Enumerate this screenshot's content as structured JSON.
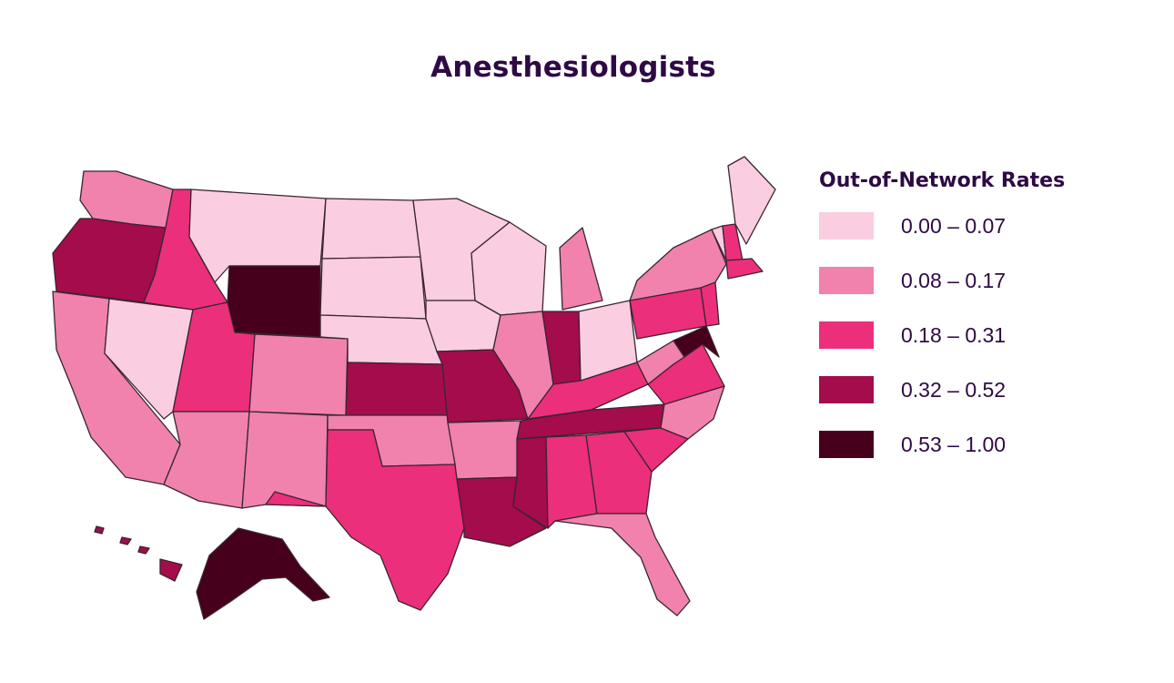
{
  "title": "Anesthesiologists",
  "legend": {
    "title": "Out-of-Network Rates",
    "bins": [
      {
        "label": "0.00 – 0.07",
        "color": "#fbcde0",
        "min": 0.0,
        "max": 0.07
      },
      {
        "label": "0.08 – 0.17",
        "color": "#f082ad",
        "min": 0.08,
        "max": 0.17
      },
      {
        "label": "0.18 – 0.31",
        "color": "#ec2f7a",
        "min": 0.18,
        "max": 0.31
      },
      {
        "label": "0.32 – 0.52",
        "color": "#a40c4b",
        "min": 0.32,
        "max": 0.52
      },
      {
        "label": "0.53 – 1.00",
        "color": "#47001c",
        "min": 0.53,
        "max": 1.0
      }
    ]
  },
  "map": {
    "regions": [
      {
        "name": "Washington",
        "bin": 1
      },
      {
        "name": "Oregon",
        "bin": 3
      },
      {
        "name": "California",
        "bin": 1
      },
      {
        "name": "Nevada",
        "bin": 0
      },
      {
        "name": "Idaho",
        "bin": 2
      },
      {
        "name": "Montana",
        "bin": 0
      },
      {
        "name": "Wyoming",
        "bin": 4
      },
      {
        "name": "Utah",
        "bin": 2
      },
      {
        "name": "Arizona",
        "bin": 1
      },
      {
        "name": "Colorado",
        "bin": 1
      },
      {
        "name": "New Mexico",
        "bin": 1
      },
      {
        "name": "North Dakota",
        "bin": 0
      },
      {
        "name": "South Dakota",
        "bin": 0
      },
      {
        "name": "Nebraska",
        "bin": 0
      },
      {
        "name": "Kansas",
        "bin": 3
      },
      {
        "name": "Oklahoma",
        "bin": 1
      },
      {
        "name": "Texas",
        "bin": 2
      },
      {
        "name": "Minnesota",
        "bin": 0
      },
      {
        "name": "Iowa",
        "bin": 0
      },
      {
        "name": "Missouri",
        "bin": 3
      },
      {
        "name": "Arkansas",
        "bin": 1
      },
      {
        "name": "Louisiana",
        "bin": 3
      },
      {
        "name": "Wisconsin",
        "bin": 0
      },
      {
        "name": "Illinois",
        "bin": 1
      },
      {
        "name": "Michigan",
        "bin": 1
      },
      {
        "name": "Indiana",
        "bin": 3
      },
      {
        "name": "Ohio",
        "bin": 0
      },
      {
        "name": "Kentucky",
        "bin": 2
      },
      {
        "name": "Tennessee",
        "bin": 3
      },
      {
        "name": "Mississippi",
        "bin": 3
      },
      {
        "name": "Alabama",
        "bin": 2
      },
      {
        "name": "Georgia",
        "bin": 2
      },
      {
        "name": "Florida",
        "bin": 1
      },
      {
        "name": "South Carolina",
        "bin": 2
      },
      {
        "name": "North Carolina",
        "bin": 1
      },
      {
        "name": "Virginia",
        "bin": 2
      },
      {
        "name": "West Virginia",
        "bin": 1
      },
      {
        "name": "Pennsylvania",
        "bin": 2
      },
      {
        "name": "New York",
        "bin": 1
      },
      {
        "name": "Vermont",
        "bin": 0
      },
      {
        "name": "New Hampshire",
        "bin": 2
      },
      {
        "name": "Maine",
        "bin": 0
      },
      {
        "name": "Massachusetts",
        "bin": 2
      },
      {
        "name": "New Jersey",
        "bin": 2
      },
      {
        "name": "Maryland",
        "bin": 4
      },
      {
        "name": "Alaska",
        "bin": 4
      },
      {
        "name": "Hawaii",
        "bin": 3
      }
    ]
  }
}
